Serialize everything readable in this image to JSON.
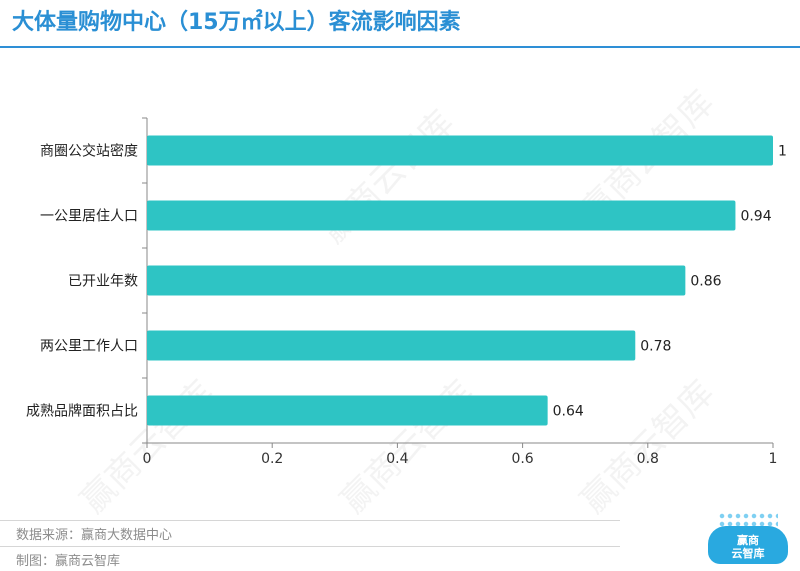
{
  "title": "大体量购物中心（15万㎡以上）客流影响因素",
  "footer": {
    "source": "数据来源：赢商大数据中心",
    "maker": "制图：赢商云智库"
  },
  "logo": {
    "line1": "赢商",
    "line2": "云智库"
  },
  "watermark_text": "赢商云智库",
  "colors": {
    "bar": "#2ec4c4",
    "title": "#2a8fd4",
    "axis": "#888888"
  },
  "chart_data": {
    "type": "bar",
    "orientation": "horizontal",
    "categories": [
      "商圈公交站密度",
      "一公里居住人口",
      "已开业年数",
      "两公里工作人口",
      "成熟品牌面积占比"
    ],
    "values": [
      1,
      0.94,
      0.86,
      0.78,
      0.64
    ],
    "data_labels": [
      "1",
      "0.94",
      "0.86",
      "0.78",
      "0.64"
    ],
    "xlim": [
      0,
      1
    ],
    "x_ticks": [
      0,
      0.2,
      0.4,
      0.6,
      0.8,
      1
    ],
    "x_tick_labels": [
      "0",
      "0.2",
      "0.4",
      "0.6",
      "0.8",
      "1"
    ],
    "title": "大体量购物中心（15万㎡以上）客流影响因素",
    "xlabel": "",
    "ylabel": "",
    "grid": false
  }
}
